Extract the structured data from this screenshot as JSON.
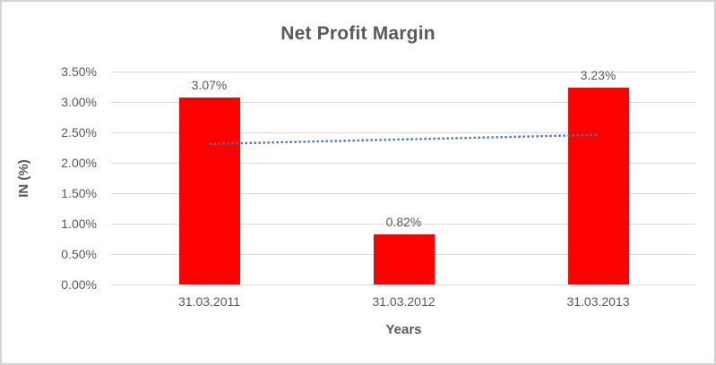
{
  "chart_data": {
    "type": "bar",
    "title": "Net Profit Margin",
    "xlabel": "Years",
    "ylabel": "IN (%)",
    "categories": [
      "31.03.2011",
      "31.03.2012",
      "31.03.2013"
    ],
    "series": [
      {
        "name": "Net Profit Margin",
        "values": [
          3.07,
          0.82,
          3.23
        ]
      }
    ],
    "data_labels": [
      "3.07%",
      "0.82%",
      "3.23%"
    ],
    "ylim": [
      0,
      3.5
    ],
    "ytick_step": 0.5,
    "ytick_labels_top_to_bottom": [
      "3.50%",
      "3.00%",
      "2.50%",
      "2.00%",
      "1.50%",
      "1.00%",
      "0.50%",
      "0.00%"
    ],
    "grid": true,
    "legend": "none",
    "bar_color": "#ff0000",
    "gridline_color": "#d9d9d9",
    "text_color": "#595959",
    "trendline": {
      "type": "linear",
      "style": "dotted",
      "color": "#4472c4",
      "start_value": 2.31,
      "end_value": 2.46
    }
  }
}
